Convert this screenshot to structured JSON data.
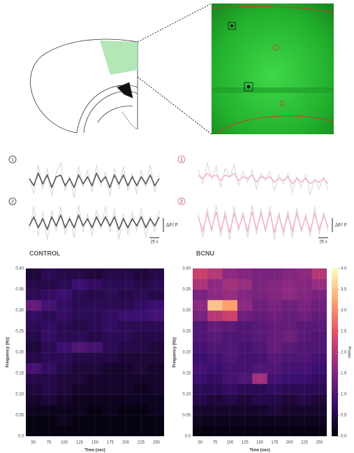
{
  "chart_data": [
    {
      "type": "line",
      "groups": [
        {
          "title": "CONTROL",
          "scale_y_label": "ΔF/ F",
          "scale_x_label": "25 s",
          "panels": [
            {
              "label": "1",
              "label_color": "#333333",
              "series": [
                {
                  "color": "#dddddd",
                  "values": [
                    0.2,
                    -0.8,
                    0.9,
                    -0.5,
                    0.7,
                    -0.9,
                    0.4,
                    1.0,
                    -0.6,
                    0.3,
                    -1.0,
                    0.8,
                    -0.4,
                    0.6,
                    -0.7,
                    0.9,
                    -0.3,
                    0.5,
                    -0.9,
                    0.7,
                    -0.5,
                    0.8,
                    -0.6,
                    0.4,
                    -0.8,
                    0.6,
                    -0.4,
                    0.9,
                    -0.7,
                    0.3
                  ]
                },
                {
                  "color": "#555555",
                  "values": [
                    0.1,
                    -0.3,
                    0.4,
                    -0.2,
                    0.3,
                    -0.4,
                    0.2,
                    0.3,
                    -0.3,
                    0.1,
                    -0.4,
                    0.3,
                    -0.2,
                    0.2,
                    -0.3,
                    0.4,
                    -0.1,
                    0.2,
                    -0.4,
                    0.3,
                    -0.2,
                    0.3,
                    -0.3,
                    0.2,
                    -0.3,
                    0.2,
                    -0.2,
                    0.3,
                    -0.3,
                    0.1
                  ]
                }
              ]
            },
            {
              "label": "2",
              "label_color": "#333333",
              "series": [
                {
                  "color": "#dddddd",
                  "values": [
                    -0.4,
                    0.9,
                    -0.8,
                    0.6,
                    -1.0,
                    0.7,
                    -0.5,
                    0.9,
                    -0.7,
                    0.4,
                    -0.9,
                    1.0,
                    -0.6,
                    0.5,
                    -0.8,
                    0.7,
                    -0.4,
                    0.9,
                    -0.6,
                    0.8,
                    -1.0,
                    0.5,
                    -0.7,
                    0.6,
                    -0.5,
                    0.8,
                    -0.9,
                    0.4,
                    -0.6,
                    0.7
                  ]
                },
                {
                  "color": "#555555",
                  "values": [
                    -0.2,
                    0.3,
                    -0.3,
                    0.2,
                    -0.4,
                    0.3,
                    -0.2,
                    0.4,
                    -0.3,
                    0.2,
                    -0.3,
                    0.4,
                    -0.2,
                    0.2,
                    -0.3,
                    0.3,
                    -0.2,
                    0.3,
                    -0.2,
                    0.3,
                    -0.4,
                    0.2,
                    -0.3,
                    0.2,
                    -0.2,
                    0.3,
                    -0.3,
                    0.2,
                    -0.2,
                    0.3
                  ]
                }
              ]
            }
          ]
        },
        {
          "title": "BCNU",
          "scale_y_label": "ΔF/ F",
          "scale_x_label": "25 s",
          "panels": [
            {
              "label": "1",
              "label_color": "#e0607a",
              "series": [
                {
                  "color": "#dddddd",
                  "values": [
                    0.6,
                    -0.2,
                    1.0,
                    0.1,
                    0.8,
                    -0.4,
                    0.7,
                    0.2,
                    0.9,
                    -0.3,
                    0.5,
                    -0.1,
                    0.6,
                    -0.5,
                    0.4,
                    0.0,
                    0.5,
                    -0.6,
                    0.3,
                    -0.2,
                    0.4,
                    -0.7,
                    0.2,
                    -0.4,
                    0.3,
                    -0.8,
                    0.1,
                    -0.5,
                    0.2,
                    -0.6
                  ]
                },
                {
                  "color": "#f4b6c6",
                  "values": [
                    0.3,
                    0.1,
                    0.4,
                    0.2,
                    0.3,
                    0.0,
                    0.3,
                    0.2,
                    0.4,
                    0.0,
                    0.2,
                    0.1,
                    0.3,
                    -0.1,
                    0.2,
                    0.1,
                    0.2,
                    -0.1,
                    0.1,
                    0.0,
                    0.2,
                    -0.2,
                    0.1,
                    -0.1,
                    0.1,
                    -0.2,
                    0.0,
                    -0.1,
                    0.1,
                    -0.2
                  ]
                }
              ]
            },
            {
              "label": "2",
              "label_color": "#e0607a",
              "series": [
                {
                  "color": "#dddddd",
                  "values": [
                    0.5,
                    -0.9,
                    0.8,
                    -0.6,
                    1.0,
                    -0.8,
                    0.7,
                    -1.0,
                    0.9,
                    -0.5,
                    0.6,
                    -0.9,
                    1.0,
                    -0.7,
                    0.8,
                    -0.6,
                    0.9,
                    -1.0,
                    0.6,
                    -0.8,
                    0.7,
                    -0.9,
                    0.8,
                    -0.6,
                    0.5,
                    -0.8,
                    0.9,
                    -0.7,
                    0.6,
                    -0.5
                  ]
                },
                {
                  "color": "#f4b6c6",
                  "values": [
                    0.3,
                    -0.5,
                    0.5,
                    -0.4,
                    0.6,
                    -0.5,
                    0.4,
                    -0.6,
                    0.5,
                    -0.3,
                    0.4,
                    -0.5,
                    0.6,
                    -0.4,
                    0.5,
                    -0.4,
                    0.6,
                    -0.6,
                    0.4,
                    -0.5,
                    0.4,
                    -0.5,
                    0.5,
                    -0.4,
                    0.3,
                    -0.5,
                    0.5,
                    -0.4,
                    0.4,
                    -0.3
                  ]
                }
              ]
            }
          ]
        }
      ],
      "ylim": [
        -1.2,
        1.2
      ]
    },
    {
      "type": "heatmap",
      "title": "CONTROL",
      "xlabel": "Time (sec)",
      "ylabel": "Frequency (Hz)",
      "x": [
        50,
        75,
        100,
        125,
        150,
        175,
        200,
        225,
        250
      ],
      "y": [
        0.0125,
        0.0375,
        0.0625,
        0.0875,
        0.1125,
        0.1375,
        0.1625,
        0.1875,
        0.2125,
        0.2375,
        0.2625,
        0.2875,
        0.3125,
        0.3375,
        0.3625,
        0.3875
      ],
      "z": [
        [
          0.1,
          0.1,
          0.1,
          0.1,
          0.1,
          0.1,
          0.1,
          0.1,
          0.1
        ],
        [
          0.1,
          0.1,
          0.2,
          0.1,
          0.1,
          0.1,
          0.1,
          0.1,
          0.1
        ],
        [
          0.2,
          0.2,
          0.2,
          0.2,
          0.1,
          0.2,
          0.1,
          0.1,
          0.2
        ],
        [
          0.3,
          0.4,
          0.3,
          0.2,
          0.2,
          0.2,
          0.2,
          0.2,
          0.2
        ],
        [
          0.4,
          0.5,
          0.4,
          0.3,
          0.3,
          0.3,
          0.3,
          0.2,
          0.3
        ],
        [
          0.5,
          0.5,
          0.4,
          0.4,
          0.3,
          0.3,
          0.3,
          0.3,
          0.3
        ],
        [
          0.9,
          0.7,
          0.5,
          0.4,
          0.4,
          0.3,
          0.3,
          0.4,
          0.3
        ],
        [
          0.5,
          0.6,
          0.6,
          0.5,
          0.5,
          0.5,
          0.4,
          0.4,
          0.4
        ],
        [
          0.4,
          0.6,
          0.8,
          1.0,
          0.9,
          0.6,
          0.5,
          0.5,
          0.4
        ],
        [
          0.5,
          0.7,
          0.6,
          0.6,
          0.5,
          0.6,
          0.6,
          0.5,
          0.5
        ],
        [
          0.6,
          0.7,
          0.6,
          0.5,
          0.6,
          0.7,
          0.6,
          0.6,
          0.6
        ],
        [
          0.7,
          0.6,
          0.7,
          0.6,
          0.6,
          0.7,
          0.8,
          0.8,
          0.9
        ],
        [
          1.2,
          0.9,
          0.7,
          0.6,
          0.6,
          0.6,
          0.6,
          0.7,
          0.8
        ],
        [
          0.6,
          0.7,
          0.8,
          0.6,
          0.5,
          0.6,
          0.5,
          0.6,
          0.5
        ],
        [
          0.5,
          0.5,
          0.6,
          0.8,
          0.7,
          0.6,
          0.6,
          0.5,
          0.6
        ],
        [
          0.4,
          0.6,
          0.5,
          0.5,
          0.4,
          0.5,
          0.5,
          0.4,
          0.5
        ]
      ],
      "xlim": [
        37.5,
        262.5
      ],
      "ylim": [
        0,
        0.4
      ],
      "xticks": [
        50,
        75,
        100,
        125,
        150,
        175,
        200,
        225,
        250
      ],
      "yticks": [
        {
          "value": 0,
          "label": "0.0"
        },
        0.05,
        {
          "value": 0.1,
          "label": "0.10"
        },
        0.15,
        {
          "value": 0.2,
          "label": "0.20"
        },
        0.25,
        {
          "value": 0.3,
          "label": "0.30"
        },
        0.35,
        {
          "value": 0.4,
          "label": "0.40"
        }
      ],
      "clim": [
        0,
        4
      ],
      "colormap": [
        "#000004",
        "#3b0f70",
        "#8c2981",
        "#de4968",
        "#fe9f6d",
        "#fcfdbf"
      ],
      "grid": true
    },
    {
      "type": "heatmap",
      "title": "BCNU",
      "xlabel": "Time (sec)",
      "ylabel": "Frequency (Hz)",
      "x": [
        50,
        75,
        100,
        125,
        150,
        175,
        200,
        225,
        250
      ],
      "y": [
        0.0125,
        0.0375,
        0.0625,
        0.0875,
        0.1125,
        0.1375,
        0.1625,
        0.1875,
        0.2125,
        0.2375,
        0.2625,
        0.2875,
        0.3125,
        0.3375,
        0.3625,
        0.3875
      ],
      "z": [
        [
          0.1,
          0.1,
          0.1,
          0.1,
          0.1,
          0.1,
          0.1,
          0.1,
          0.1
        ],
        [
          0.2,
          0.2,
          0.2,
          0.2,
          0.2,
          0.2,
          0.2,
          0.2,
          0.2
        ],
        [
          0.3,
          0.3,
          0.3,
          0.3,
          0.3,
          0.4,
          0.3,
          0.3,
          0.3
        ],
        [
          0.5,
          0.4,
          0.5,
          0.4,
          0.5,
          0.5,
          0.4,
          0.5,
          0.4
        ],
        [
          0.6,
          0.6,
          0.7,
          0.6,
          0.6,
          0.7,
          0.6,
          0.6,
          0.6
        ],
        [
          0.8,
          0.7,
          0.9,
          1.0,
          1.8,
          0.9,
          0.8,
          0.8,
          0.7
        ],
        [
          0.9,
          0.8,
          0.9,
          0.9,
          1.0,
          1.0,
          0.9,
          0.9,
          0.8
        ],
        [
          0.8,
          0.9,
          1.0,
          0.9,
          0.9,
          1.1,
          1.0,
          1.0,
          0.9
        ],
        [
          0.9,
          1.0,
          1.0,
          0.9,
          1.0,
          1.2,
          1.1,
          1.0,
          1.0
        ],
        [
          1.0,
          1.1,
          1.0,
          1.0,
          1.1,
          1.2,
          1.3,
          1.1,
          1.0
        ],
        [
          1.0,
          1.2,
          1.1,
          1.0,
          1.1,
          1.2,
          1.2,
          1.1,
          1.1
        ],
        [
          1.4,
          2.0,
          2.2,
          1.3,
          1.2,
          1.3,
          1.2,
          1.3,
          1.2
        ],
        [
          1.6,
          3.5,
          3.2,
          1.6,
          1.3,
          1.4,
          1.3,
          1.4,
          1.3
        ],
        [
          1.4,
          1.6,
          1.7,
          1.5,
          1.4,
          1.5,
          1.6,
          1.5,
          1.4
        ],
        [
          1.9,
          1.6,
          1.8,
          1.7,
          1.4,
          1.5,
          1.6,
          1.5,
          1.7
        ],
        [
          2.2,
          2.0,
          1.6,
          1.5,
          1.4,
          1.4,
          1.5,
          1.6,
          2.0
        ]
      ],
      "xlim": [
        37.5,
        262.5
      ],
      "ylim": [
        0,
        0.4
      ],
      "xticks": [
        50,
        75,
        100,
        125,
        150,
        175,
        200,
        225,
        250
      ],
      "yticks": [
        {
          "value": 0,
          "label": "0.0"
        },
        0.05,
        {
          "value": 0.1,
          "label": "0.10"
        },
        0.15,
        {
          "value": 0.2,
          "label": "0.20"
        },
        0.25,
        {
          "value": 0.3,
          "label": "0.30"
        },
        0.35,
        {
          "value": 0.4,
          "label": "0.40"
        }
      ],
      "clim": [
        0,
        4
      ],
      "colormap": [
        "#000004",
        "#3b0f70",
        "#8c2981",
        "#de4968",
        "#fe9f6d",
        "#fcfdbf"
      ],
      "grid": true,
      "colorbar": {
        "label": "Power",
        "ticks": [
          {
            "value": 0,
            "label": "0.0"
          },
          0.5,
          {
            "value": 1,
            "label": "1.0"
          },
          1.5,
          {
            "value": 2,
            "label": "2.0"
          },
          2.5,
          {
            "value": 3,
            "label": "3.0"
          },
          3.5,
          {
            "value": 4,
            "label": "4.0"
          }
        ]
      }
    }
  ]
}
